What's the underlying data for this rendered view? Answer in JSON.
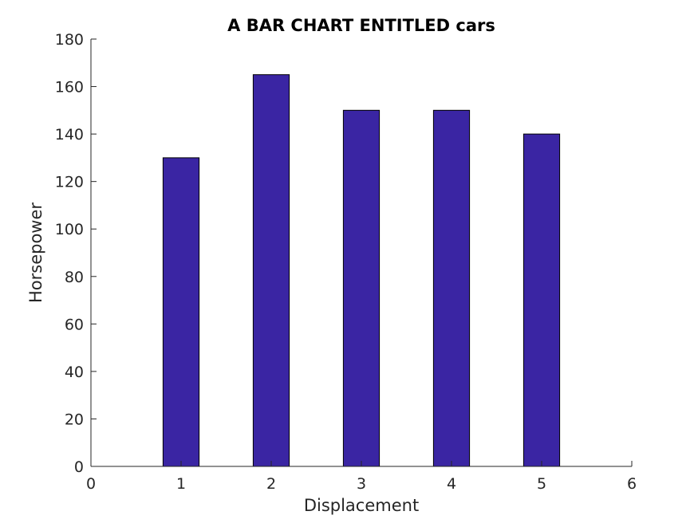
{
  "chart_data": {
    "type": "bar",
    "title": "A BAR CHART ENTITLED cars",
    "xlabel": "Displacement",
    "ylabel": "Horsepower",
    "x": [
      1,
      2,
      3,
      4,
      5
    ],
    "values": [
      130,
      165,
      150,
      150,
      140
    ],
    "xlim": [
      0,
      6
    ],
    "ylim": [
      0,
      180
    ],
    "xticks": [
      0,
      1,
      2,
      3,
      4,
      5,
      6
    ],
    "yticks": [
      0,
      20,
      40,
      60,
      80,
      100,
      120,
      140,
      160,
      180
    ],
    "bar_color": "#3A25A3",
    "grid": false,
    "legend": "none"
  }
}
